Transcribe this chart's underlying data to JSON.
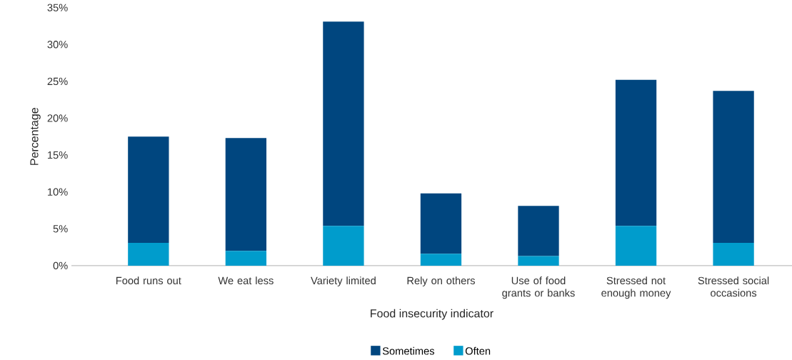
{
  "chart_data": {
    "type": "bar",
    "stacked": true,
    "xlabel": "Food insecurity indicator",
    "ylabel": "Percentage",
    "categories": [
      "Food runs out",
      "We eat less",
      "Variety limited",
      "Rely on others",
      "Use of food grants or banks",
      "Stressed not enough money",
      "Stressed social occasions"
    ],
    "series": [
      {
        "name": "Often",
        "color": "#009ccc",
        "values": [
          3.1,
          2.0,
          5.4,
          1.6,
          1.3,
          5.4,
          3.1
        ]
      },
      {
        "name": "Sometimes",
        "color": "#00467f",
        "values": [
          14.4,
          15.3,
          27.7,
          8.2,
          6.8,
          19.8,
          20.6
        ]
      }
    ],
    "ylim": [
      0,
      35
    ],
    "yticks": [
      {
        "value": 0,
        "label": "0%"
      },
      {
        "value": 5,
        "label": "5%"
      },
      {
        "value": 10,
        "label": "10%"
      },
      {
        "value": 15,
        "label": "15%"
      },
      {
        "value": 20,
        "label": "20%"
      },
      {
        "value": 25,
        "label": "25%"
      },
      {
        "value": 30,
        "label": "30%"
      },
      {
        "value": 35,
        "label": "35%"
      }
    ],
    "grid": false,
    "legend": "bottom"
  }
}
